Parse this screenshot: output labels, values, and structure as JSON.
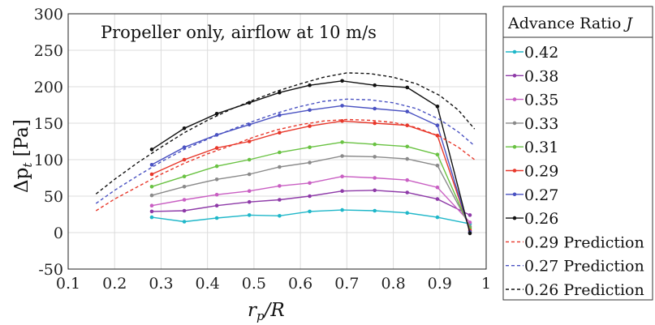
{
  "chart_data": {
    "type": "line",
    "annotation": "Propeller only, airflow at 10 m/s",
    "xlabel_main": "r",
    "xlabel_sub": "p",
    "xlabel_tail": "/R",
    "ylabel_main": "Δp",
    "ylabel_sub": "t",
    "ylabel_tail": " [Pa]",
    "xlim": [
      0.1,
      1.0
    ],
    "ylim": [
      -50,
      300
    ],
    "grid": true,
    "legend_position": "outside-right",
    "legend_title_text": "Advance Ratio ",
    "legend_title_var": "J",
    "x_ticks": [
      "0.1",
      "0.2",
      "0.3",
      "0.4",
      "0.5",
      "0.6",
      "0.7",
      "0.8",
      "0.9",
      "1"
    ],
    "y_ticks": [
      "-50",
      "0",
      "50",
      "100",
      "150",
      "200",
      "250",
      "300"
    ],
    "series": [
      {
        "name": "0.42",
        "color": "#1fb7c9",
        "style": "solid-marker",
        "x": [
          0.28,
          0.35,
          0.42,
          0.49,
          0.555,
          0.62,
          0.69,
          0.76,
          0.83,
          0.895,
          0.965
        ],
        "y": [
          21,
          15,
          20,
          24,
          23,
          29,
          31,
          30,
          27,
          21,
          12
        ]
      },
      {
        "name": "0.38",
        "color": "#8e3aa8",
        "style": "solid-marker",
        "x": [
          0.28,
          0.35,
          0.42,
          0.49,
          0.555,
          0.62,
          0.69,
          0.76,
          0.83,
          0.895,
          0.965
        ],
        "y": [
          29,
          30,
          37,
          42,
          45,
          50,
          57,
          58,
          55,
          46,
          24
        ]
      },
      {
        "name": "0.35",
        "color": "#c95fc3",
        "style": "solid-marker",
        "x": [
          0.28,
          0.35,
          0.42,
          0.49,
          0.555,
          0.62,
          0.69,
          0.76,
          0.83,
          0.895,
          0.965
        ],
        "y": [
          37,
          45,
          52,
          57,
          64,
          68,
          77,
          75,
          72,
          62,
          14
        ]
      },
      {
        "name": "0.33",
        "color": "#8a8a8a",
        "style": "solid-marker",
        "x": [
          0.28,
          0.35,
          0.42,
          0.49,
          0.555,
          0.62,
          0.69,
          0.76,
          0.83,
          0.895,
          0.965
        ],
        "y": [
          51,
          63,
          73,
          80,
          90,
          96,
          105,
          104,
          101,
          92,
          8
        ]
      },
      {
        "name": "0.31",
        "color": "#69c242",
        "style": "solid-marker",
        "x": [
          0.28,
          0.35,
          0.42,
          0.49,
          0.555,
          0.62,
          0.69,
          0.76,
          0.83,
          0.895,
          0.965
        ],
        "y": [
          63,
          77,
          91,
          100,
          110,
          117,
          124,
          121,
          118,
          107,
          6
        ]
      },
      {
        "name": "0.29",
        "color": "#e8372a",
        "style": "solid-marker",
        "x": [
          0.28,
          0.35,
          0.42,
          0.49,
          0.555,
          0.62,
          0.69,
          0.76,
          0.83,
          0.895,
          0.965
        ],
        "y": [
          80,
          100,
          116,
          125,
          137,
          146,
          153,
          150,
          147,
          133,
          3
        ]
      },
      {
        "name": "0.27",
        "color": "#4a52c2",
        "style": "solid-marker",
        "x": [
          0.28,
          0.35,
          0.42,
          0.49,
          0.555,
          0.62,
          0.69,
          0.76,
          0.83,
          0.895,
          0.965
        ],
        "y": [
          93,
          117,
          134,
          148,
          161,
          168,
          174,
          170,
          166,
          147,
          1
        ]
      },
      {
        "name": "0.26",
        "color": "#111111",
        "style": "solid-marker",
        "x": [
          0.28,
          0.35,
          0.42,
          0.49,
          0.555,
          0.62,
          0.69,
          0.76,
          0.83,
          0.895,
          0.965
        ],
        "y": [
          114,
          143,
          163,
          178,
          192,
          202,
          208,
          202,
          199,
          173,
          -1
        ]
      },
      {
        "name": "0.29 Prediction",
        "color": "#e8372a",
        "style": "dashed",
        "x": [
          0.16,
          0.2,
          0.25,
          0.3,
          0.35,
          0.4,
          0.45,
          0.5,
          0.55,
          0.6,
          0.65,
          0.7,
          0.75,
          0.8,
          0.85,
          0.9,
          0.94,
          0.975
        ],
        "y": [
          30,
          46,
          63,
          80,
          95,
          108,
          119,
          131,
          141,
          148,
          153,
          155,
          154,
          151,
          144,
          132,
          117,
          100
        ]
      },
      {
        "name": "0.27 Prediction",
        "color": "#4a52c2",
        "style": "dashed",
        "x": [
          0.16,
          0.2,
          0.25,
          0.3,
          0.35,
          0.4,
          0.45,
          0.5,
          0.55,
          0.6,
          0.65,
          0.7,
          0.75,
          0.8,
          0.85,
          0.9,
          0.94,
          0.975
        ],
        "y": [
          40,
          58,
          78,
          97,
          114,
          128,
          141,
          153,
          164,
          173,
          180,
          183,
          182,
          178,
          170,
          155,
          138,
          119
        ]
      },
      {
        "name": "0.26 Prediction",
        "color": "#111111",
        "style": "dashed",
        "x": [
          0.16,
          0.2,
          0.25,
          0.3,
          0.35,
          0.4,
          0.45,
          0.5,
          0.55,
          0.6,
          0.65,
          0.7,
          0.75,
          0.8,
          0.85,
          0.9,
          0.94,
          0.975
        ],
        "y": [
          53,
          73,
          96,
          117,
          137,
          154,
          169,
          182,
          194,
          204,
          213,
          219,
          218,
          213,
          204,
          188,
          168,
          142
        ]
      }
    ]
  }
}
